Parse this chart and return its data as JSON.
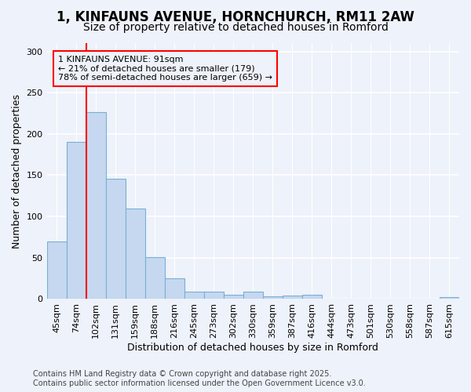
{
  "title_line1": "1, KINFAUNS AVENUE, HORNCHURCH, RM11 2AW",
  "title_line2": "Size of property relative to detached houses in Romford",
  "xlabel": "Distribution of detached houses by size in Romford",
  "ylabel": "Number of detached properties",
  "categories": [
    "45sqm",
    "74sqm",
    "102sqm",
    "131sqm",
    "159sqm",
    "188sqm",
    "216sqm",
    "245sqm",
    "273sqm",
    "302sqm",
    "330sqm",
    "359sqm",
    "387sqm",
    "416sqm",
    "444sqm",
    "473sqm",
    "501sqm",
    "530sqm",
    "558sqm",
    "587sqm",
    "615sqm"
  ],
  "values": [
    70,
    190,
    226,
    146,
    110,
    51,
    25,
    9,
    9,
    5,
    9,
    3,
    4,
    5,
    0,
    0,
    0,
    0,
    0,
    0,
    2
  ],
  "bar_color": "#c5d8f0",
  "bar_edge_color": "#7aafd4",
  "ylim": [
    0,
    310
  ],
  "yticks": [
    0,
    50,
    100,
    150,
    200,
    250,
    300
  ],
  "red_line_x": 1.5,
  "annotation_text": "1 KINFAUNS AVENUE: 91sqm\n← 21% of detached houses are smaller (179)\n78% of semi-detached houses are larger (659) →",
  "footer_line1": "Contains HM Land Registry data © Crown copyright and database right 2025.",
  "footer_line2": "Contains public sector information licensed under the Open Government Licence v3.0.",
  "background_color": "#eef2fa",
  "grid_color": "#ffffff",
  "title_fontsize": 12,
  "subtitle_fontsize": 10,
  "axis_label_fontsize": 9,
  "tick_fontsize": 8,
  "annotation_fontsize": 8,
  "footer_fontsize": 7
}
